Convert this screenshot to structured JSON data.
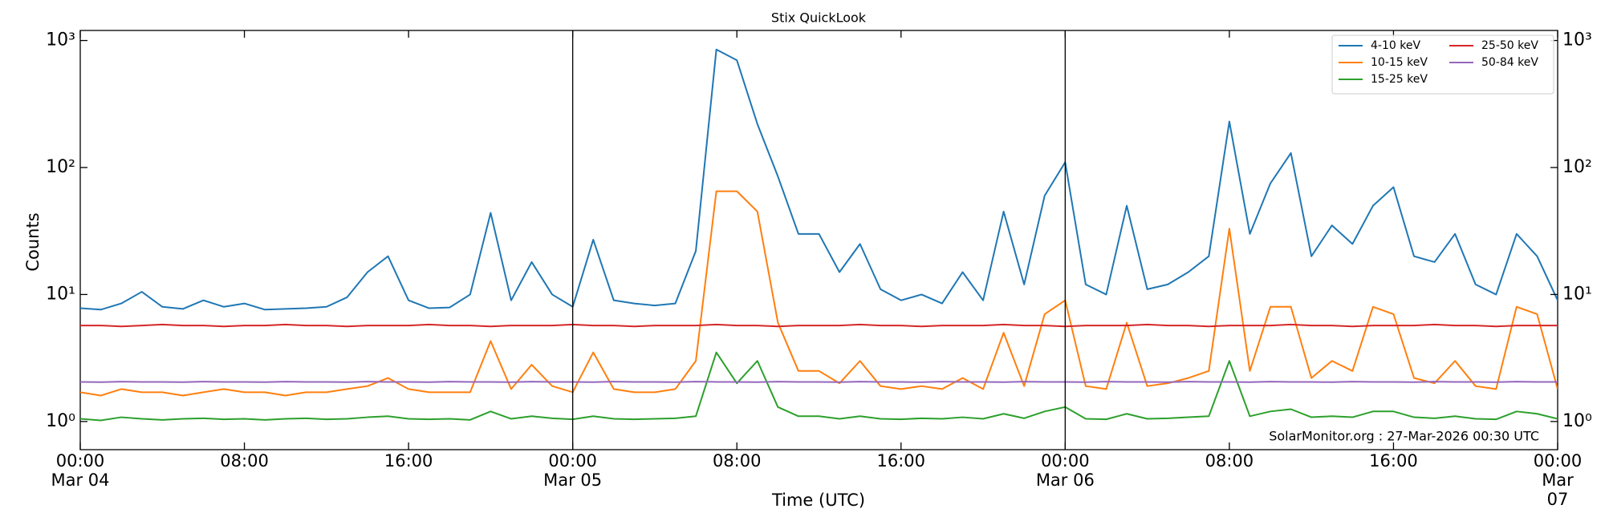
{
  "chart_data": {
    "type": "line",
    "title": "Stix QuickLook",
    "x_label": "Time (UTC)",
    "y_label": "Counts",
    "annotation": "SolarMonitor.org : 27-Mar-2026 00:30 UTC",
    "log_scale": true,
    "legend": "upper right",
    "legend_columns": 2,
    "x": [
      "Mar 04 00:00",
      "Mar 04 01:00",
      "Mar 04 02:00",
      "Mar 04 03:00",
      "Mar 04 04:00",
      "Mar 04 05:00",
      "Mar 04 06:00",
      "Mar 04 07:00",
      "Mar 04 08:00",
      "Mar 04 09:00",
      "Mar 04 10:00",
      "Mar 04 11:00",
      "Mar 04 12:00",
      "Mar 04 13:00",
      "Mar 04 14:00",
      "Mar 04 15:00",
      "Mar 04 16:00",
      "Mar 04 17:00",
      "Mar 04 18:00",
      "Mar 04 19:00",
      "Mar 04 20:00",
      "Mar 04 21:00",
      "Mar 04 22:00",
      "Mar 04 23:00",
      "Mar 05 00:00",
      "Mar 05 01:00",
      "Mar 05 02:00",
      "Mar 05 03:00",
      "Mar 05 04:00",
      "Mar 05 05:00",
      "Mar 05 06:00",
      "Mar 05 07:00",
      "Mar 05 08:00",
      "Mar 05 09:00",
      "Mar 05 10:00",
      "Mar 05 11:00",
      "Mar 05 12:00",
      "Mar 05 13:00",
      "Mar 05 14:00",
      "Mar 05 15:00",
      "Mar 05 16:00",
      "Mar 05 17:00",
      "Mar 05 18:00",
      "Mar 05 19:00",
      "Mar 05 20:00",
      "Mar 05 21:00",
      "Mar 05 22:00",
      "Mar 05 23:00",
      "Mar 06 00:00",
      "Mar 06 01:00",
      "Mar 06 02:00",
      "Mar 06 03:00",
      "Mar 06 04:00",
      "Mar 06 05:00",
      "Mar 06 06:00",
      "Mar 06 07:00",
      "Mar 06 08:00",
      "Mar 06 09:00",
      "Mar 06 10:00",
      "Mar 06 11:00",
      "Mar 06 12:00",
      "Mar 06 13:00",
      "Mar 06 14:00",
      "Mar 06 15:00",
      "Mar 06 16:00",
      "Mar 06 17:00",
      "Mar 06 18:00",
      "Mar 06 19:00",
      "Mar 06 20:00",
      "Mar 06 21:00",
      "Mar 06 22:00",
      "Mar 06 23:00",
      "Mar 07 00:00"
    ],
    "series": [
      {
        "name": "4-10 keV",
        "color": "#1f77b4",
        "values": [
          7.8,
          7.6,
          8.5,
          10.5,
          8,
          7.7,
          9,
          8,
          8.5,
          7.6,
          7.7,
          7.8,
          8,
          9.5,
          15,
          20,
          9,
          7.8,
          7.9,
          10,
          44,
          9,
          18,
          10,
          8,
          27,
          9,
          8.5,
          8.2,
          8.5,
          22,
          850,
          700,
          220,
          85,
          30,
          30,
          15,
          25,
          11,
          9,
          10,
          8.5,
          15,
          9,
          45,
          12,
          60,
          110,
          12,
          10,
          50,
          11,
          12,
          15,
          20,
          230,
          30,
          75,
          130,
          20,
          35,
          25,
          50,
          70,
          20,
          18,
          30,
          12,
          10,
          30,
          20,
          9
        ]
      },
      {
        "name": "10-15 keV",
        "color": "#ff7f0e",
        "values": [
          1.7,
          1.6,
          1.8,
          1.7,
          1.7,
          1.6,
          1.7,
          1.8,
          1.7,
          1.7,
          1.6,
          1.7,
          1.7,
          1.8,
          1.9,
          2.2,
          1.8,
          1.7,
          1.7,
          1.7,
          4.3,
          1.8,
          2.8,
          1.9,
          1.7,
          3.5,
          1.8,
          1.7,
          1.7,
          1.8,
          3,
          65,
          65,
          45,
          6,
          2.5,
          2.5,
          2,
          3,
          1.9,
          1.8,
          1.9,
          1.8,
          2.2,
          1.8,
          5,
          1.9,
          7,
          9,
          1.9,
          1.8,
          6,
          1.9,
          2,
          2.2,
          2.5,
          33,
          2.5,
          8,
          8,
          2.2,
          3,
          2.5,
          8,
          7,
          2.2,
          2,
          3,
          1.9,
          1.8,
          8,
          7,
          1.8
        ]
      },
      {
        "name": "15-25 keV",
        "color": "#2ca02c",
        "values": [
          1.05,
          1.02,
          1.08,
          1.05,
          1.03,
          1.05,
          1.06,
          1.04,
          1.05,
          1.03,
          1.05,
          1.06,
          1.04,
          1.05,
          1.08,
          1.1,
          1.05,
          1.04,
          1.05,
          1.03,
          1.2,
          1.05,
          1.1,
          1.06,
          1.04,
          1.1,
          1.05,
          1.04,
          1.05,
          1.06,
          1.1,
          3.5,
          2,
          3,
          1.3,
          1.1,
          1.1,
          1.05,
          1.1,
          1.05,
          1.04,
          1.06,
          1.05,
          1.08,
          1.05,
          1.15,
          1.06,
          1.2,
          1.3,
          1.05,
          1.04,
          1.15,
          1.05,
          1.06,
          1.08,
          1.1,
          3,
          1.1,
          1.2,
          1.25,
          1.08,
          1.1,
          1.08,
          1.2,
          1.2,
          1.08,
          1.06,
          1.1,
          1.05,
          1.04,
          1.2,
          1.15,
          1.05
        ]
      },
      {
        "name": "25-50 keV",
        "color": "#d62728",
        "values": [
          5.7,
          5.7,
          5.6,
          5.7,
          5.8,
          5.7,
          5.7,
          5.6,
          5.7,
          5.7,
          5.8,
          5.7,
          5.7,
          5.6,
          5.7,
          5.7,
          5.7,
          5.8,
          5.7,
          5.7,
          5.6,
          5.7,
          5.7,
          5.7,
          5.8,
          5.7,
          5.7,
          5.6,
          5.7,
          5.7,
          5.7,
          5.8,
          5.7,
          5.7,
          5.6,
          5.7,
          5.7,
          5.7,
          5.8,
          5.7,
          5.7,
          5.6,
          5.7,
          5.7,
          5.7,
          5.8,
          5.7,
          5.7,
          5.6,
          5.7,
          5.7,
          5.7,
          5.8,
          5.7,
          5.7,
          5.6,
          5.7,
          5.7,
          5.7,
          5.8,
          5.7,
          5.7,
          5.6,
          5.7,
          5.7,
          5.7,
          5.8,
          5.7,
          5.7,
          5.6,
          5.7,
          5.7,
          5.7
        ]
      },
      {
        "name": "50-84 keV",
        "color": "#9467bd",
        "values": [
          2.05,
          2.04,
          2.06,
          2.05,
          2.05,
          2.04,
          2.06,
          2.05,
          2.05,
          2.04,
          2.06,
          2.05,
          2.05,
          2.04,
          2.06,
          2.05,
          2.05,
          2.04,
          2.06,
          2.05,
          2.05,
          2.04,
          2.06,
          2.05,
          2.05,
          2.04,
          2.06,
          2.05,
          2.05,
          2.04,
          2.06,
          2.05,
          2.05,
          2.04,
          2.06,
          2.05,
          2.05,
          2.04,
          2.06,
          2.05,
          2.05,
          2.04,
          2.06,
          2.05,
          2.05,
          2.04,
          2.06,
          2.05,
          2.05,
          2.04,
          2.06,
          2.05,
          2.05,
          2.04,
          2.06,
          2.05,
          2.05,
          2.04,
          2.06,
          2.05,
          2.05,
          2.04,
          2.06,
          2.05,
          2.05,
          2.04,
          2.06,
          2.05,
          2.05,
          2.04,
          2.06,
          2.05,
          2.05
        ]
      }
    ],
    "xlim": [
      "Mar 04 00:00",
      "Mar 07 00:00"
    ],
    "xticks": [
      {
        "value": "Mar 04 00:00",
        "label": "00:00\nMar 04"
      },
      {
        "value": "Mar 04 08:00",
        "label": "08:00"
      },
      {
        "value": "Mar 04 16:00",
        "label": "16:00"
      },
      {
        "value": "Mar 05 00:00",
        "label": "00:00\nMar 05"
      },
      {
        "value": "Mar 05 08:00",
        "label": "08:00"
      },
      {
        "value": "Mar 05 16:00",
        "label": "16:00"
      },
      {
        "value": "Mar 06 00:00",
        "label": "00:00\nMar 06"
      },
      {
        "value": "Mar 06 08:00",
        "label": "08:00"
      },
      {
        "value": "Mar 06 16:00",
        "label": "16:00"
      },
      {
        "value": "Mar 07 00:00",
        "label": "00:00\nMar 07"
      }
    ],
    "vlines": [
      "Mar 05 00:00",
      "Mar 06 00:00"
    ],
    "ylim": [
      0.6,
      1200
    ],
    "yticks": [
      {
        "value": 1,
        "label": "10⁰"
      },
      {
        "value": 10,
        "label": "10¹"
      },
      {
        "value": 100,
        "label": "10²"
      },
      {
        "value": 1000,
        "label": "10³"
      }
    ],
    "right_axis": true
  }
}
